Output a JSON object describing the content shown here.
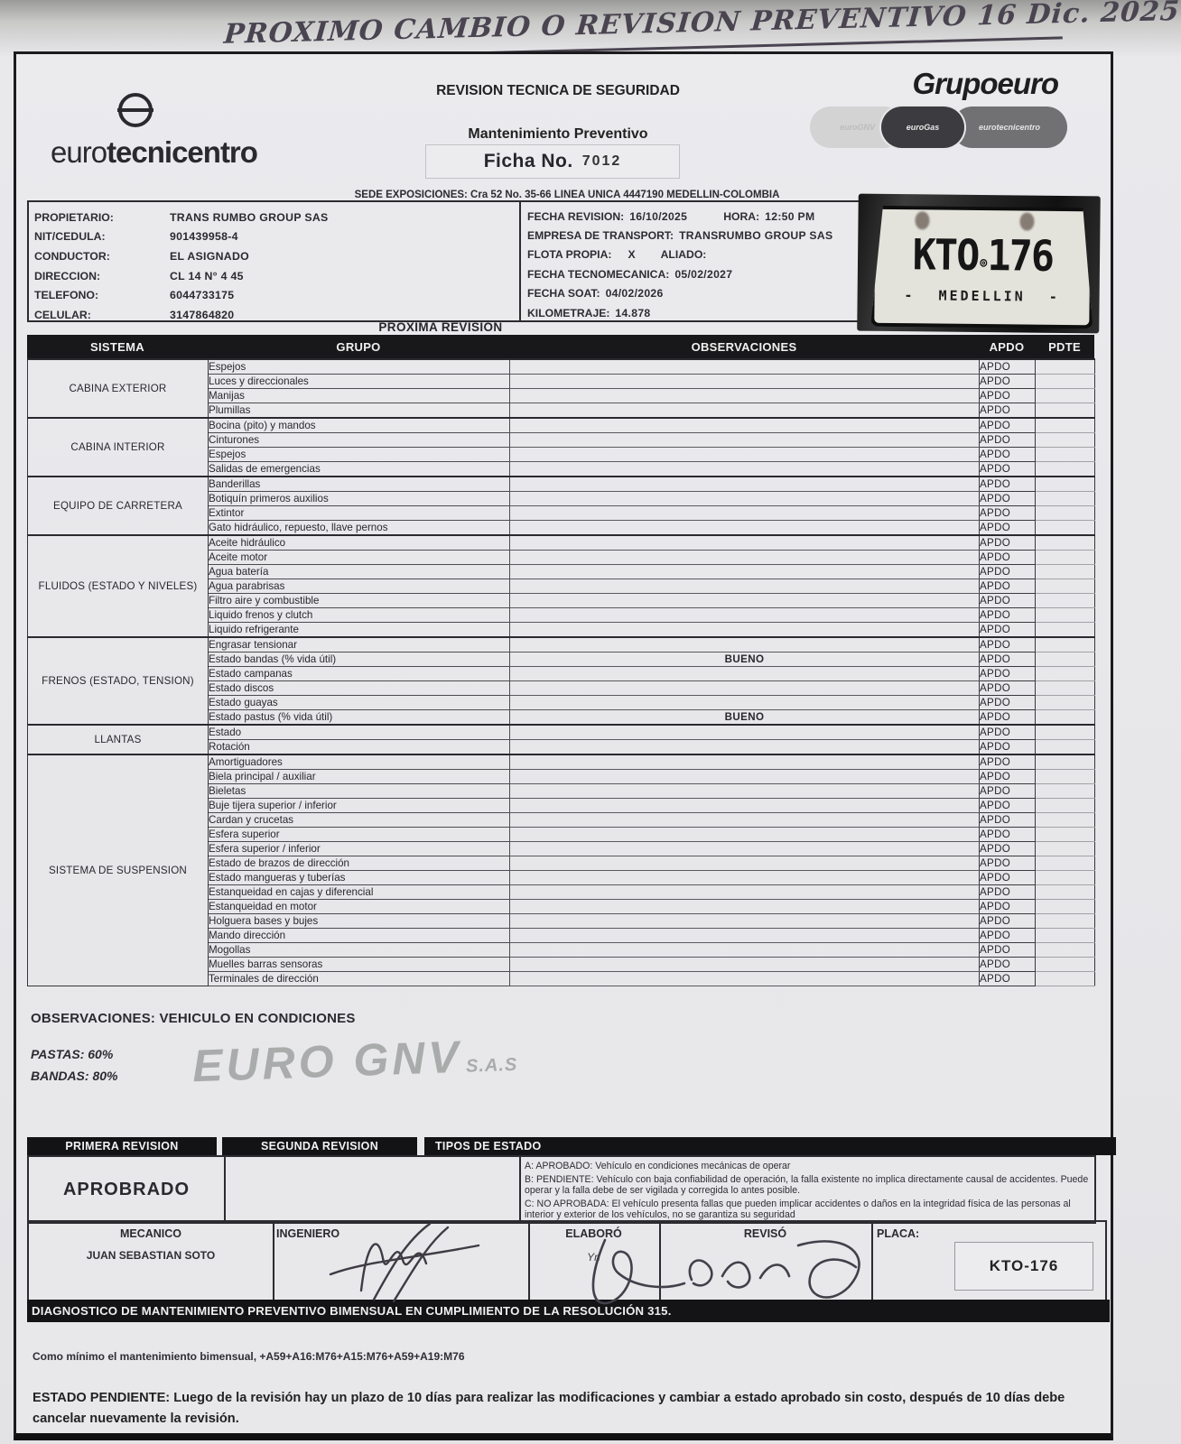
{
  "handwritten_note": "PROXIMO CAMBIO O REVISION PREVENTIVO 16 Dic. 2025",
  "header": {
    "brand_left": {
      "name_regular": "euro",
      "name_bold": "tecnicentro"
    },
    "title": "REVISION TECNICA DE SEGURIDAD",
    "subtitle": "Mantenimiento Preventivo",
    "ficha_label": "Ficha No.",
    "ficha_number": "7012",
    "brand_right": {
      "name": "Grupoeuro",
      "badges": [
        "euroGNV",
        "euroGas",
        "eurotecnicentro"
      ]
    },
    "sede_line": "SEDE EXPOSICIONES: Cra 52 No. 35-66 LINEA UNICA 4447190  MEDELLIN-COLOMBIA"
  },
  "owner_info": {
    "rows": [
      {
        "label": "PROPIETARIO:",
        "value": "TRANS RUMBO GROUP SAS"
      },
      {
        "label": "NIT/CEDULA:",
        "value": "901439958-4"
      },
      {
        "label": "CONDUCTOR:",
        "value": "EL ASIGNADO"
      },
      {
        "label": "DIRECCION:",
        "value": "CL 14 N° 4 45"
      },
      {
        "label": "TELEFONO:",
        "value": "6044733175"
      },
      {
        "label": "CELULAR:",
        "value": "3147864820"
      }
    ]
  },
  "revision_info": {
    "fecha_revision_label": "FECHA REVISION:",
    "fecha_revision": "16/10/2025",
    "hora_label": "HORA:",
    "hora": "12:50 PM",
    "empresa_label": "EMPRESA DE TRANSPORT:",
    "empresa": "TRANSRUMBO GROUP  SAS",
    "flota_label": "FLOTA PROPIA:",
    "flota_value": "X",
    "aliado_label": "ALIADO:",
    "tecnomecanica_label": "FECHA TECNOMECANICA:",
    "tecnomecanica": "05/02/2027",
    "soat_label": "FECHA SOAT:",
    "soat": "04/02/2026",
    "kilometraje_label": "KILOMETRAJE:",
    "kilometraje": "14.878"
  },
  "plate": {
    "prefix": "KTO",
    "suffix": "176",
    "seal": "⊚",
    "city": "MEDELLIN",
    "dash": "-"
  },
  "proxima_revision_label": "PROXIMA REVISION",
  "checklist": {
    "headers": {
      "sistema": "SISTEMA",
      "grupo": "GRUPO",
      "observaciones": "OBSERVACIONES",
      "apdo": "APDO",
      "pdte": "PDTE"
    },
    "sections": [
      {
        "sistema": "CABINA EXTERIOR",
        "rows": [
          {
            "grupo": "Espejos",
            "obs": "",
            "apdo": "APDO",
            "pdte": ""
          },
          {
            "grupo": "Luces y direccionales",
            "obs": "",
            "apdo": "APDO",
            "pdte": ""
          },
          {
            "grupo": "Manijas",
            "obs": "",
            "apdo": "APDO",
            "pdte": ""
          },
          {
            "grupo": "Plumillas",
            "obs": "",
            "apdo": "APDO",
            "pdte": ""
          }
        ]
      },
      {
        "sistema": "CABINA INTERIOR",
        "rows": [
          {
            "grupo": "Bocina (pito) y mandos",
            "obs": "",
            "apdo": "APDO",
            "pdte": ""
          },
          {
            "grupo": "Cinturones",
            "obs": "",
            "apdo": "APDO",
            "pdte": ""
          },
          {
            "grupo": "Espejos",
            "obs": "",
            "apdo": "APDO",
            "pdte": ""
          },
          {
            "grupo": "Salidas de emergencias",
            "obs": "",
            "apdo": "APDO",
            "pdte": ""
          }
        ]
      },
      {
        "sistema": "EQUIPO DE CARRETERA",
        "rows": [
          {
            "grupo": "Banderillas",
            "obs": "",
            "apdo": "APDO",
            "pdte": ""
          },
          {
            "grupo": "Botiquín primeros auxilios",
            "obs": "",
            "apdo": "APDO",
            "pdte": ""
          },
          {
            "grupo": "Extintor",
            "obs": "",
            "apdo": "APDO",
            "pdte": ""
          },
          {
            "grupo": "Gato hidráulico, repuesto, llave pernos",
            "obs": "",
            "apdo": "APDO",
            "pdte": ""
          }
        ]
      },
      {
        "sistema": "FLUIDOS (ESTADO Y NIVELES)",
        "rows": [
          {
            "grupo": "Aceite hidráulico",
            "obs": "",
            "apdo": "APDO",
            "pdte": ""
          },
          {
            "grupo": "Aceite motor",
            "obs": "",
            "apdo": "APDO",
            "pdte": ""
          },
          {
            "grupo": "Agua batería",
            "obs": "",
            "apdo": "APDO",
            "pdte": ""
          },
          {
            "grupo": "Agua parabrisas",
            "obs": "",
            "apdo": "APDO",
            "pdte": ""
          },
          {
            "grupo": "Filtro aire y combustible",
            "obs": "",
            "apdo": "APDO",
            "pdte": ""
          },
          {
            "grupo": "Liquido frenos y clutch",
            "obs": "",
            "apdo": "APDO",
            "pdte": ""
          },
          {
            "grupo": "Liquido refrigerante",
            "obs": "",
            "apdo": "APDO",
            "pdte": ""
          }
        ]
      },
      {
        "sistema": "FRENOS (ESTADO, TENSION)",
        "rows": [
          {
            "grupo": "Engrasar tensionar",
            "obs": "",
            "apdo": "APDO",
            "pdte": ""
          },
          {
            "grupo": "Estado bandas (% vida útil)",
            "obs": "BUENO",
            "apdo": "APDO",
            "pdte": ""
          },
          {
            "grupo": "Estado campanas",
            "obs": "",
            "apdo": "APDO",
            "pdte": ""
          },
          {
            "grupo": "Estado discos",
            "obs": "",
            "apdo": "APDO",
            "pdte": ""
          },
          {
            "grupo": "Estado guayas",
            "obs": "",
            "apdo": "APDO",
            "pdte": ""
          },
          {
            "grupo": "Estado pastus (% vida útil)",
            "obs": "BUENO",
            "apdo": "APDO",
            "pdte": ""
          }
        ]
      },
      {
        "sistema": "LLANTAS",
        "rows": [
          {
            "grupo": "Estado",
            "obs": "",
            "apdo": "APDO",
            "pdte": ""
          },
          {
            "grupo": "Rotación",
            "obs": "",
            "apdo": "APDO",
            "pdte": ""
          }
        ]
      },
      {
        "sistema": "SISTEMA DE SUSPENSION",
        "rows": [
          {
            "grupo": "Amortiguadores",
            "obs": "",
            "apdo": "APDO",
            "pdte": ""
          },
          {
            "grupo": "Biela principal / auxiliar",
            "obs": "",
            "apdo": "APDO",
            "pdte": ""
          },
          {
            "grupo": "Bieletas",
            "obs": "",
            "apdo": "APDO",
            "pdte": ""
          },
          {
            "grupo": "Buje tijera superior / inferior",
            "obs": "",
            "apdo": "APDO",
            "pdte": ""
          },
          {
            "grupo": "Cardan y crucetas",
            "obs": "",
            "apdo": "APDO",
            "pdte": ""
          },
          {
            "grupo": "Esfera superior",
            "obs": "",
            "apdo": "APDO",
            "pdte": ""
          },
          {
            "grupo": "Esfera superior / inferior",
            "obs": "",
            "apdo": "APDO",
            "pdte": ""
          },
          {
            "grupo": "Estado de brazos de dirección",
            "obs": "",
            "apdo": "APDO",
            "pdte": ""
          },
          {
            "grupo": "Estado mangueras y tuberías",
            "obs": "",
            "apdo": "APDO",
            "pdte": ""
          },
          {
            "grupo": "Estanqueidad en cajas y diferencial",
            "obs": "",
            "apdo": "APDO",
            "pdte": ""
          },
          {
            "grupo": "Estanqueidad en motor",
            "obs": "",
            "apdo": "APDO",
            "pdte": ""
          },
          {
            "grupo": "Holguera bases y bujes",
            "obs": "",
            "apdo": "APDO",
            "pdte": ""
          },
          {
            "grupo": "Mando dirección",
            "obs": "",
            "apdo": "APDO",
            "pdte": ""
          },
          {
            "grupo": "Mogollas",
            "obs": "",
            "apdo": "APDO",
            "pdte": ""
          },
          {
            "grupo": "Muelles barras sensoras",
            "obs": "",
            "apdo": "APDO",
            "pdte": ""
          },
          {
            "grupo": "Terminales de dirección",
            "obs": "",
            "apdo": "APDO",
            "pdte": ""
          }
        ]
      }
    ]
  },
  "observaciones_section": {
    "line": "OBSERVACIONES: VEHICULO EN CONDICIONES",
    "pastas": "PASTAS: 60%",
    "bandas": "BANDAS: 80%",
    "stamp_main": "EURO GNV",
    "stamp_suffix": "S.A.S"
  },
  "review": {
    "primera_header": "PRIMERA REVISION",
    "segunda_header": "SEGUNDA REVISION",
    "tipos_header": "TIPOS DE ESTADO",
    "primera_value": "APROBRADO",
    "tipo_a": "A: APROBADO: Vehículo en condiciones mecánicas de operar",
    "tipo_b": "B: PENDIENTE: Vehículo con baja confiabilidad de operación, la falla existente no implica directamente causal de accidentes. Puede operar y la falla debe de ser vigilada y corregida lo antes posible.",
    "tipo_c": "C: NO APROBADA: El vehículo presenta fallas que pueden implicar accidentes o daños en la integridad física de las personas al interior y exterior de los vehículos, no se garantiza su seguridad"
  },
  "signatures": {
    "mecanico_label": "MECANICO",
    "mecanico_name": "JUAN SEBASTIAN SOTO",
    "ingeniero_label": "INGENIERO",
    "elaboro_label": "ELABORÓ",
    "elaboro_value": "Yn",
    "reviso_label": "REVISÓ",
    "placa_label": "PLACA:",
    "placa_value": "KTO-176"
  },
  "diagnostico_bar": "DIAGNOSTICO DE MANTENIMIENTO PREVENTIVO BIMENSUAL EN CUMPLIMIENTO DE LA RESOLUCIÓN 315.",
  "footer": {
    "line1": "Como mínimo el mantenimiento bimensual, +A59+A16:M76+A15:M76+A59+A19:M76",
    "line2": "ESTADO PENDIENTE: Luego de la revisión hay un plazo de 10 días para realizar las modificaciones y cambiar a estado aprobado sin costo, después de 10 días debe cancelar nuevamente la revisión."
  }
}
